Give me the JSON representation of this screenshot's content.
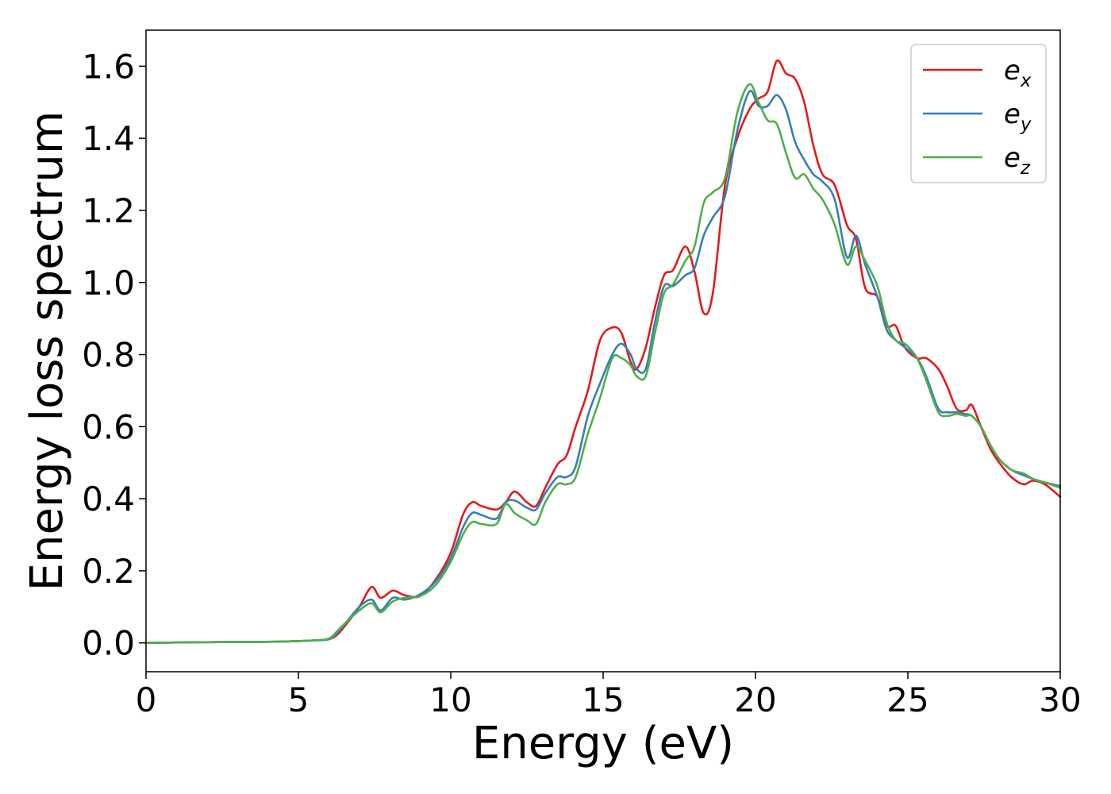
{
  "chart_data": {
    "type": "line",
    "title": "",
    "xlabel": "Energy (eV)",
    "ylabel": "Energy loss spectrum",
    "xlim": [
      0,
      30
    ],
    "ylim": [
      -0.08,
      1.7
    ],
    "xticks": [
      0,
      5,
      10,
      15,
      20,
      25,
      30
    ],
    "xtick_labels": [
      "0",
      "5",
      "10",
      "15",
      "20",
      "25",
      "30"
    ],
    "yticks": [
      0.0,
      0.2,
      0.4,
      0.6,
      0.8,
      1.0,
      1.2,
      1.4,
      1.6
    ],
    "ytick_labels": [
      "0.0",
      "0.2",
      "0.4",
      "0.6",
      "0.8",
      "1.0",
      "1.2",
      "1.4",
      "1.6"
    ],
    "grid": false,
    "legend_position": "top-right",
    "series": [
      {
        "name": "e_x",
        "legend_base": "e",
        "legend_sub": "x",
        "color": "#e41a1c",
        "x": [
          0,
          2,
          4,
          5,
          5.5,
          6,
          6.3,
          6.6,
          7,
          7.4,
          7.7,
          8.1,
          8.5,
          9,
          9.5,
          10,
          10.4,
          10.7,
          11,
          11.5,
          11.8,
          12.1,
          12.5,
          12.8,
          13.1,
          13.5,
          13.8,
          14.1,
          14.5,
          14.9,
          15.3,
          15.6,
          15.9,
          16.1,
          16.4,
          16.7,
          17,
          17.3,
          17.7,
          18,
          18.3,
          18.6,
          19,
          19.4,
          19.8,
          20.1,
          20.4,
          20.7,
          21,
          21.3,
          21.6,
          21.9,
          22.2,
          22.6,
          23,
          23.3,
          23.6,
          24,
          24.3,
          24.6,
          24.9,
          25.3,
          25.6,
          26,
          26.3,
          26.6,
          26.9,
          27.1,
          27.4,
          27.7,
          28,
          28.4,
          28.8,
          29.1,
          29.5,
          30
        ],
        "y": [
          0.0,
          0.002,
          0.003,
          0.005,
          0.007,
          0.01,
          0.025,
          0.055,
          0.1,
          0.155,
          0.125,
          0.145,
          0.132,
          0.13,
          0.175,
          0.25,
          0.355,
          0.39,
          0.38,
          0.37,
          0.39,
          0.42,
          0.39,
          0.38,
          0.43,
          0.495,
          0.52,
          0.6,
          0.7,
          0.84,
          0.875,
          0.86,
          0.78,
          0.76,
          0.82,
          0.93,
          1.02,
          1.035,
          1.1,
          1.03,
          0.915,
          0.97,
          1.27,
          1.4,
          1.48,
          1.51,
          1.53,
          1.615,
          1.58,
          1.565,
          1.5,
          1.38,
          1.3,
          1.27,
          1.16,
          1.12,
          0.985,
          0.96,
          0.88,
          0.88,
          0.82,
          0.79,
          0.79,
          0.76,
          0.71,
          0.65,
          0.645,
          0.66,
          0.6,
          0.54,
          0.5,
          0.46,
          0.44,
          0.45,
          0.44,
          0.405
        ]
      },
      {
        "name": "e_y",
        "legend_base": "e",
        "legend_sub": "y",
        "color": "#377eb8",
        "x": [
          0,
          2,
          4,
          5,
          5.5,
          6,
          6.3,
          6.6,
          7,
          7.4,
          7.7,
          8.1,
          8.5,
          9,
          9.5,
          10,
          10.4,
          10.7,
          11,
          11.5,
          11.8,
          12.1,
          12.5,
          12.8,
          13.1,
          13.5,
          13.8,
          14.1,
          14.5,
          14.9,
          15.3,
          15.6,
          15.9,
          16.1,
          16.4,
          16.7,
          17,
          17.3,
          17.7,
          18,
          18.3,
          18.6,
          19,
          19.4,
          19.8,
          20.1,
          20.4,
          20.7,
          21,
          21.3,
          21.6,
          21.9,
          22.2,
          22.6,
          23,
          23.3,
          23.6,
          24,
          24.3,
          24.6,
          24.9,
          25.3,
          25.6,
          26,
          26.3,
          26.6,
          26.9,
          27.1,
          27.4,
          27.7,
          28,
          28.4,
          28.8,
          29.1,
          29.5,
          30
        ],
        "y": [
          0.0,
          0.002,
          0.003,
          0.005,
          0.007,
          0.01,
          0.03,
          0.06,
          0.1,
          0.12,
          0.09,
          0.125,
          0.12,
          0.135,
          0.17,
          0.235,
          0.32,
          0.36,
          0.355,
          0.345,
          0.39,
          0.395,
          0.375,
          0.37,
          0.415,
          0.46,
          0.46,
          0.49,
          0.63,
          0.72,
          0.8,
          0.83,
          0.8,
          0.76,
          0.76,
          0.89,
          0.99,
          0.99,
          1.02,
          1.04,
          1.13,
          1.18,
          1.24,
          1.42,
          1.53,
          1.49,
          1.49,
          1.52,
          1.48,
          1.39,
          1.34,
          1.3,
          1.28,
          1.23,
          1.07,
          1.13,
          1.05,
          0.96,
          0.87,
          0.84,
          0.82,
          0.79,
          0.74,
          0.65,
          0.64,
          0.64,
          0.635,
          0.63,
          0.6,
          0.55,
          0.51,
          0.48,
          0.465,
          0.455,
          0.445,
          0.435
        ]
      },
      {
        "name": "e_z",
        "legend_base": "e",
        "legend_sub": "z",
        "color": "#4daf4a",
        "x": [
          0,
          2,
          4,
          5,
          5.5,
          6,
          6.3,
          6.6,
          7,
          7.4,
          7.7,
          8.1,
          8.5,
          9,
          9.5,
          10,
          10.4,
          10.7,
          11,
          11.5,
          11.8,
          12.1,
          12.5,
          12.8,
          13.1,
          13.5,
          13.8,
          14.1,
          14.5,
          14.9,
          15.3,
          15.6,
          15.9,
          16.1,
          16.4,
          16.7,
          17,
          17.3,
          17.7,
          18,
          18.3,
          18.6,
          19,
          19.4,
          19.8,
          20.1,
          20.4,
          20.7,
          21,
          21.3,
          21.6,
          21.9,
          22.2,
          22.6,
          23,
          23.3,
          23.6,
          24,
          24.3,
          24.6,
          24.9,
          25.3,
          25.6,
          26,
          26.3,
          26.6,
          26.9,
          27.1,
          27.4,
          27.7,
          28,
          28.4,
          28.8,
          29.1,
          29.5,
          30
        ],
        "y": [
          0.0,
          0.002,
          0.003,
          0.005,
          0.007,
          0.012,
          0.035,
          0.06,
          0.09,
          0.11,
          0.085,
          0.115,
          0.125,
          0.13,
          0.16,
          0.225,
          0.3,
          0.335,
          0.33,
          0.33,
          0.385,
          0.36,
          0.34,
          0.33,
          0.39,
          0.44,
          0.44,
          0.46,
          0.58,
          0.68,
          0.79,
          0.79,
          0.77,
          0.74,
          0.74,
          0.86,
          0.97,
          0.995,
          1.06,
          1.1,
          1.22,
          1.25,
          1.29,
          1.47,
          1.55,
          1.5,
          1.45,
          1.44,
          1.36,
          1.29,
          1.3,
          1.26,
          1.23,
          1.16,
          1.05,
          1.1,
          1.06,
          0.99,
          0.89,
          0.84,
          0.83,
          0.79,
          0.73,
          0.64,
          0.63,
          0.635,
          0.63,
          0.63,
          0.6,
          0.55,
          0.51,
          0.48,
          0.47,
          0.455,
          0.445,
          0.43
        ]
      }
    ]
  }
}
